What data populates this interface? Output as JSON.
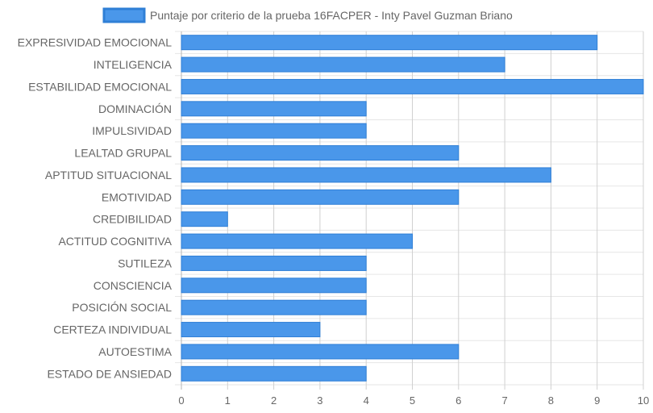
{
  "chart_data": {
    "type": "bar",
    "orientation": "horizontal",
    "title": "",
    "xlabel": "",
    "ylabel": "",
    "xlim": [
      0,
      10
    ],
    "x_ticks": [
      "0",
      "1",
      "2",
      "3",
      "4",
      "5",
      "6",
      "7",
      "8",
      "9",
      "10"
    ],
    "grid": true,
    "legend_position": "top",
    "bar_color": "#4A97EA",
    "bar_border_color": "#2F7FD6",
    "categories": [
      "EXPRESIVIDAD EMOCIONAL",
      "INTELIGENCIA",
      "ESTABILIDAD EMOCIONAL",
      "DOMINACIÓN",
      "IMPULSIVIDAD",
      "LEALTAD GRUPAL",
      "APTITUD SITUACIONAL",
      "EMOTIVIDAD",
      "CREDIBILIDAD",
      "ACTITUD COGNITIVA",
      "SUTILEZA",
      "CONSCIENCIA",
      "POSICIÓN SOCIAL",
      "CERTEZA INDIVIDUAL",
      "AUTOESTIMA",
      "ESTADO DE ANSIEDAD"
    ],
    "series": [
      {
        "name": "Puntaje por criterio de la prueba 16FACPER - Inty Pavel Guzman Briano",
        "values": [
          9,
          7,
          10,
          4,
          4,
          6,
          8,
          6,
          1,
          5,
          4,
          4,
          4,
          3,
          6,
          4
        ]
      }
    ]
  }
}
